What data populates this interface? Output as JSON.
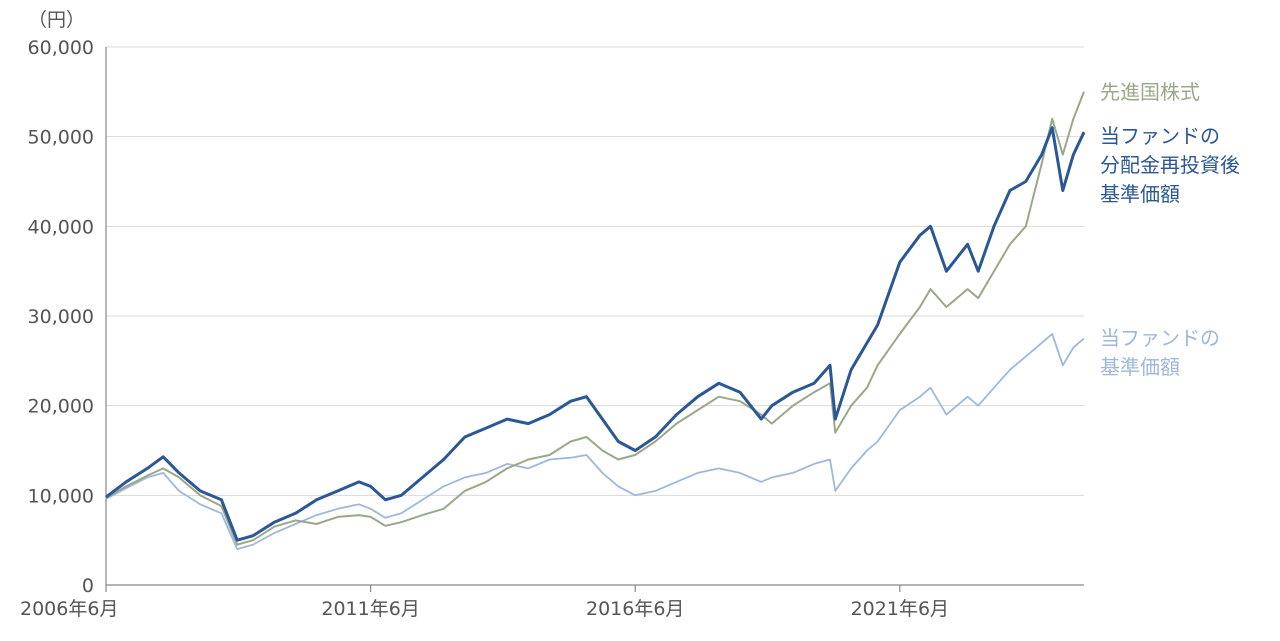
{
  "chart_data": {
    "type": "line",
    "unit_label": "（円）",
    "ylim": [
      0,
      60000
    ],
    "y_ticks": [
      0,
      10000,
      20000,
      30000,
      40000,
      50000,
      60000
    ],
    "y_tick_labels": [
      "0",
      "10,000",
      "20,000",
      "30,000",
      "40,000",
      "50,000",
      "60,000"
    ],
    "x_ticks": [
      2006.42,
      2011.42,
      2016.42,
      2021.42
    ],
    "x_tick_labels": [
      "2006年6月",
      "2011年6月",
      "2016年6月",
      "2021年6月"
    ],
    "xlim": [
      2006.42,
      2024.9
    ],
    "grid": true,
    "legend_placement": "right, inline labels",
    "series": [
      {
        "name": "先進国株式",
        "label_lines": [
          "先進国株式"
        ],
        "color": "#9aa889",
        "x": [
          2006.42,
          2006.8,
          2007.2,
          2007.5,
          2007.8,
          2008.2,
          2008.6,
          2008.9,
          2009.2,
          2009.6,
          2010.0,
          2010.4,
          2010.8,
          2011.2,
          2011.42,
          2011.7,
          2012.0,
          2012.4,
          2012.8,
          2013.2,
          2013.6,
          2014.0,
          2014.4,
          2014.8,
          2015.2,
          2015.5,
          2015.8,
          2016.1,
          2016.42,
          2016.8,
          2017.2,
          2017.6,
          2018.0,
          2018.4,
          2018.8,
          2019.0,
          2019.4,
          2019.8,
          2020.1,
          2020.2,
          2020.5,
          2020.8,
          2021.0,
          2021.42,
          2021.8,
          2022.0,
          2022.3,
          2022.7,
          2022.9,
          2023.2,
          2023.5,
          2023.8,
          2024.1,
          2024.3,
          2024.5,
          2024.7,
          2024.9
        ],
        "y": [
          9700,
          11000,
          12200,
          13000,
          12000,
          10000,
          8800,
          4500,
          5000,
          6500,
          7200,
          6800,
          7600,
          7800,
          7600,
          6600,
          7000,
          7800,
          8500,
          10500,
          11500,
          13000,
          14000,
          14500,
          16000,
          16500,
          15000,
          14000,
          14500,
          16000,
          18000,
          19500,
          21000,
          20500,
          19000,
          18000,
          20000,
          21500,
          22500,
          17000,
          20000,
          22000,
          24500,
          28000,
          31000,
          33000,
          31000,
          33000,
          32000,
          35000,
          38000,
          40000,
          47000,
          52000,
          48000,
          52000,
          55000
        ]
      },
      {
        "name": "当ファンドの分配金再投資後基準価額",
        "label_lines": [
          "当ファンドの",
          "分配金再投資後",
          "基準価額"
        ],
        "color": "#2b5797",
        "x": [
          2006.42,
          2006.8,
          2007.2,
          2007.5,
          2007.8,
          2008.2,
          2008.6,
          2008.9,
          2009.2,
          2009.6,
          2010.0,
          2010.4,
          2010.8,
          2011.2,
          2011.42,
          2011.7,
          2012.0,
          2012.4,
          2012.8,
          2013.2,
          2013.6,
          2014.0,
          2014.4,
          2014.8,
          2015.2,
          2015.5,
          2015.8,
          2016.1,
          2016.42,
          2016.8,
          2017.2,
          2017.6,
          2018.0,
          2018.4,
          2018.8,
          2019.0,
          2019.4,
          2019.8,
          2020.1,
          2020.2,
          2020.5,
          2020.8,
          2021.0,
          2021.42,
          2021.8,
          2022.0,
          2022.3,
          2022.7,
          2022.9,
          2023.2,
          2023.5,
          2023.8,
          2024.1,
          2024.3,
          2024.5,
          2024.7,
          2024.9
        ],
        "y": [
          9800,
          11500,
          13000,
          14300,
          12500,
          10500,
          9500,
          5000,
          5500,
          7000,
          8000,
          9500,
          10500,
          11500,
          11000,
          9500,
          10000,
          12000,
          14000,
          16500,
          17500,
          18500,
          18000,
          19000,
          20500,
          21000,
          18500,
          16000,
          15000,
          16500,
          19000,
          21000,
          22500,
          21500,
          18500,
          20000,
          21500,
          22500,
          24500,
          18500,
          24000,
          27000,
          29000,
          36000,
          39000,
          40000,
          35000,
          38000,
          35000,
          40000,
          44000,
          45000,
          48000,
          51000,
          44000,
          48000,
          50500
        ]
      },
      {
        "name": "当ファンドの基準価額",
        "label_lines": [
          "当ファンドの",
          "基準価額"
        ],
        "color": "#9fb7d9",
        "x": [
          2006.42,
          2006.8,
          2007.2,
          2007.5,
          2007.8,
          2008.2,
          2008.6,
          2008.9,
          2009.2,
          2009.6,
          2010.0,
          2010.4,
          2010.8,
          2011.2,
          2011.42,
          2011.7,
          2012.0,
          2012.4,
          2012.8,
          2013.2,
          2013.6,
          2014.0,
          2014.4,
          2014.8,
          2015.2,
          2015.5,
          2015.8,
          2016.1,
          2016.42,
          2016.8,
          2017.2,
          2017.6,
          2018.0,
          2018.4,
          2018.8,
          2019.0,
          2019.4,
          2019.8,
          2020.1,
          2020.2,
          2020.5,
          2020.8,
          2021.0,
          2021.42,
          2021.8,
          2022.0,
          2022.3,
          2022.7,
          2022.9,
          2023.2,
          2023.5,
          2023.8,
          2024.1,
          2024.3,
          2024.5,
          2024.7,
          2024.9
        ],
        "y": [
          9600,
          10800,
          12000,
          12500,
          10500,
          9000,
          8000,
          4000,
          4500,
          5800,
          6800,
          7800,
          8500,
          9000,
          8500,
          7500,
          8000,
          9500,
          11000,
          12000,
          12500,
          13500,
          13000,
          14000,
          14200,
          14500,
          12500,
          11000,
          10000,
          10500,
          11500,
          12500,
          13000,
          12500,
          11500,
          12000,
          12500,
          13500,
          14000,
          10500,
          13000,
          15000,
          16000,
          19500,
          21000,
          22000,
          19000,
          21000,
          20000,
          22000,
          24000,
          25500,
          27000,
          28000,
          24500,
          26500,
          27500
        ]
      }
    ]
  }
}
